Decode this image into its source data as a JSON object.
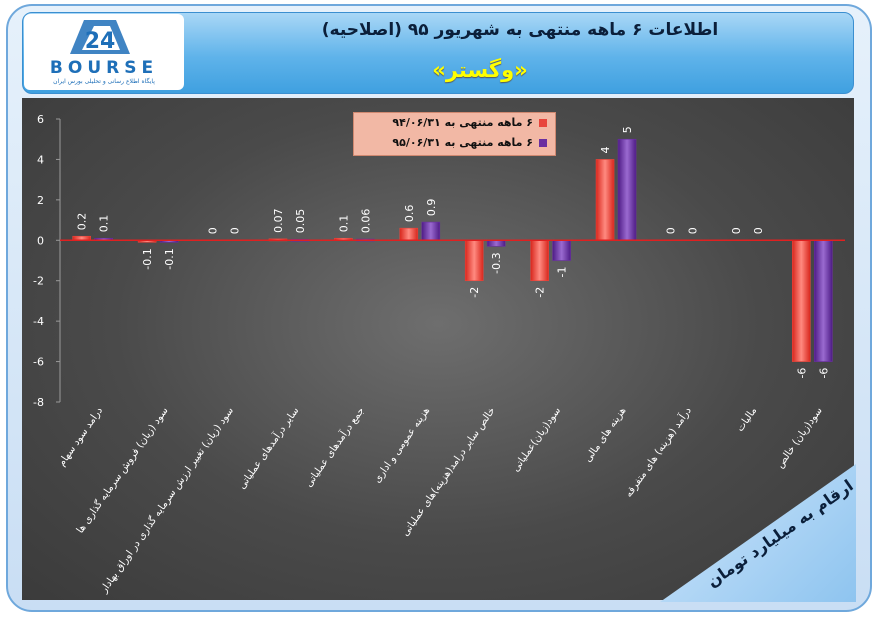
{
  "header": {
    "title": "اطلاعات ۶ ماهه منتهی به شهریور ۹۵ (اصلاحیه)",
    "subtitle": "«وگستر»"
  },
  "logo": {
    "text": "BOURSE",
    "tagline": "پایگاه اطلاع رسانی و تحلیلی بورس ایران"
  },
  "note": "ارقام به میلیارد تومان",
  "colors": {
    "series1": "#e8453c",
    "series2": "#6a2fa0",
    "zero_line": "#e02020"
  },
  "chart_data": {
    "type": "bar",
    "ylim": [
      -8,
      6
    ],
    "yticks": [
      -8,
      -6,
      -4,
      -2,
      0,
      2,
      4,
      6
    ],
    "grid": false,
    "legend_position": "top-center",
    "categories": [
      "درامد سود سهام",
      "سود (زیان) فروش سرمایه گذاری ها",
      "سود (زیان) تغییر ارزش سرمایه گذاری در اوراق بهادار",
      "سایر درآمدهای عملیاتی",
      "جمع درآمدهای عملیاتی",
      "هزینه عمومی و اداری",
      "خالص سایر درامد(هزینه)های عملیاتی",
      "سود(زیان)عملیاتی",
      "هزینه های مالی",
      "درآمد (هزینه) های متفرقه",
      "مالیات",
      "سود(زیان) خالص"
    ],
    "series": [
      {
        "name": "۶ ماهه منتهی به ۹۴/۰۶/۳۱",
        "values": [
          0.2,
          -0.1,
          0,
          0.07,
          0.1,
          0.6,
          -2,
          -2,
          4,
          0,
          0,
          -6
        ]
      },
      {
        "name": "۶ ماهه منتهی به ۹۵/۰۶/۳۱",
        "values": [
          0.1,
          -0.1,
          0,
          0.05,
          0.06,
          0.9,
          -0.3,
          -1,
          5,
          0,
          0,
          -6
        ]
      }
    ]
  }
}
